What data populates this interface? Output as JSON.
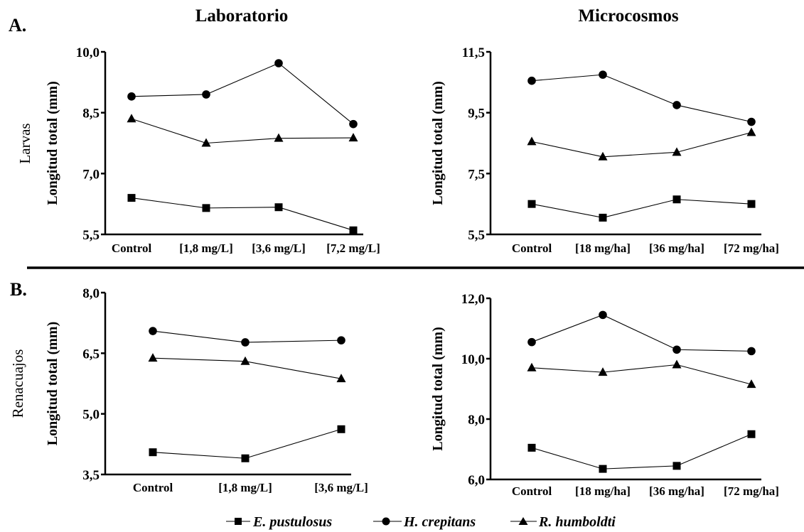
{
  "labels": {
    "panel_a": "A.",
    "panel_b": "B.",
    "col_laboratorio": "Laboratorio",
    "col_microcosmos": "Microcosmos",
    "row_larvas": "Larvas",
    "row_renacuajos": "Renacuajos"
  },
  "legend": [
    {
      "name": "E. pustulosus",
      "marker": "square"
    },
    {
      "name": "H. crepitans",
      "marker": "circle"
    },
    {
      "name": "R. humboldti",
      "marker": "triangle"
    }
  ],
  "chart_data": [
    {
      "type": "line",
      "categories": [
        "Control",
        "[1,8 mg/L]",
        "[3,6 mg/L]",
        "[7,2 mg/L]"
      ],
      "ylabel": "Longitud total (mm)",
      "ylim": [
        5.5,
        10.0
      ],
      "yticks": [
        "5,5",
        "7,0",
        "8,5",
        "10,0"
      ],
      "series": [
        {
          "name": "E. pustulosus",
          "marker": "square",
          "values": [
            6.4,
            6.15,
            6.17,
            5.6
          ]
        },
        {
          "name": "H. crepitans",
          "marker": "circle",
          "values": [
            8.9,
            8.95,
            9.72,
            8.22
          ]
        },
        {
          "name": "R. humboldti",
          "marker": "triangle",
          "values": [
            8.35,
            7.75,
            7.87,
            7.88
          ]
        }
      ]
    },
    {
      "type": "line",
      "categories": [
        "Control",
        "[18 mg/ha]",
        "[36 mg/ha]",
        "[72 mg/ha]"
      ],
      "ylabel": "Longitud total (mm)",
      "ylim": [
        5.5,
        11.5
      ],
      "yticks": [
        "5,5",
        "7,5",
        "9,5",
        "11,5"
      ],
      "series": [
        {
          "name": "E. pustulosus",
          "marker": "square",
          "values": [
            6.5,
            6.05,
            6.65,
            6.5
          ]
        },
        {
          "name": "H. crepitans",
          "marker": "circle",
          "values": [
            10.55,
            10.75,
            9.75,
            9.2
          ]
        },
        {
          "name": "R. humboldti",
          "marker": "triangle",
          "values": [
            8.55,
            8.05,
            8.2,
            8.85
          ]
        }
      ]
    },
    {
      "type": "line",
      "categories": [
        "Control",
        "[1,8 mg/L]",
        "[3,6 mg/L]"
      ],
      "ylabel": "Longitud total (mm)",
      "ylim": [
        3.5,
        8.0
      ],
      "yticks": [
        "3,5",
        "5,0",
        "6,5",
        "8,0"
      ],
      "series": [
        {
          "name": "E. pustulosus",
          "marker": "square",
          "values": [
            4.05,
            3.9,
            4.62
          ]
        },
        {
          "name": "H. crepitans",
          "marker": "circle",
          "values": [
            7.05,
            6.77,
            6.82
          ]
        },
        {
          "name": "R. humboldti",
          "marker": "triangle",
          "values": [
            6.38,
            6.3,
            5.87
          ]
        }
      ]
    },
    {
      "type": "line",
      "categories": [
        "Control",
        "[18 mg/ha]",
        "[36 mg/ha]",
        "[72 mg/ha]"
      ],
      "ylabel": "Longitud total (mm)",
      "ylim": [
        6.0,
        12.0
      ],
      "yticks": [
        "6,0",
        "8,0",
        "10,0",
        "12,0"
      ],
      "series": [
        {
          "name": "E. pustulosus",
          "marker": "square",
          "values": [
            7.05,
            6.35,
            6.45,
            7.5
          ]
        },
        {
          "name": "H. crepitans",
          "marker": "circle",
          "values": [
            10.55,
            11.45,
            10.3,
            10.25
          ]
        },
        {
          "name": "R. humboldti",
          "marker": "triangle",
          "values": [
            9.7,
            9.55,
            9.8,
            9.15
          ]
        }
      ]
    }
  ]
}
